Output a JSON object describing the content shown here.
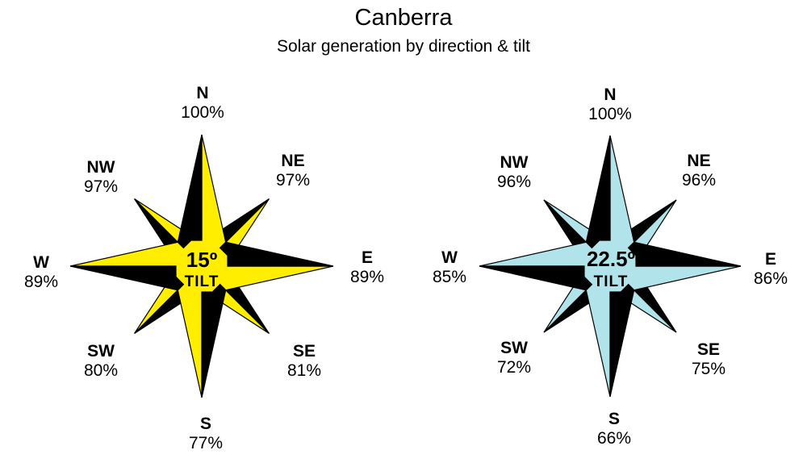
{
  "title": "Canberra",
  "subtitle": "Solar generation by direction & tilt",
  "roses": [
    {
      "tilt_value": "15º",
      "tilt_label": "TILT",
      "fill_color": "#ffee00",
      "directions": {
        "N": {
          "label": "N",
          "value": "100%"
        },
        "NE": {
          "label": "NE",
          "value": "97%"
        },
        "E": {
          "label": "E",
          "value": "89%"
        },
        "SE": {
          "label": "SE",
          "value": "81%"
        },
        "S": {
          "label": "S",
          "value": "77%"
        },
        "SW": {
          "label": "SW",
          "value": "80%"
        },
        "W": {
          "label": "W",
          "value": "89%"
        },
        "NW": {
          "label": "NW",
          "value": "97%"
        }
      }
    },
    {
      "tilt_value": "22.5º",
      "tilt_label": "TILT",
      "fill_color": "#b0e4ea",
      "directions": {
        "N": {
          "label": "N",
          "value": "100%"
        },
        "NE": {
          "label": "NE",
          "value": "96%"
        },
        "E": {
          "label": "E",
          "value": "86%"
        },
        "SE": {
          "label": "SE",
          "value": "75%"
        },
        "S": {
          "label": "S",
          "value": "66%"
        },
        "SW": {
          "label": "SW",
          "value": "72%"
        },
        "W": {
          "label": "W",
          "value": "85%"
        },
        "NW": {
          "label": "NW",
          "value": "96%"
        }
      }
    }
  ]
}
